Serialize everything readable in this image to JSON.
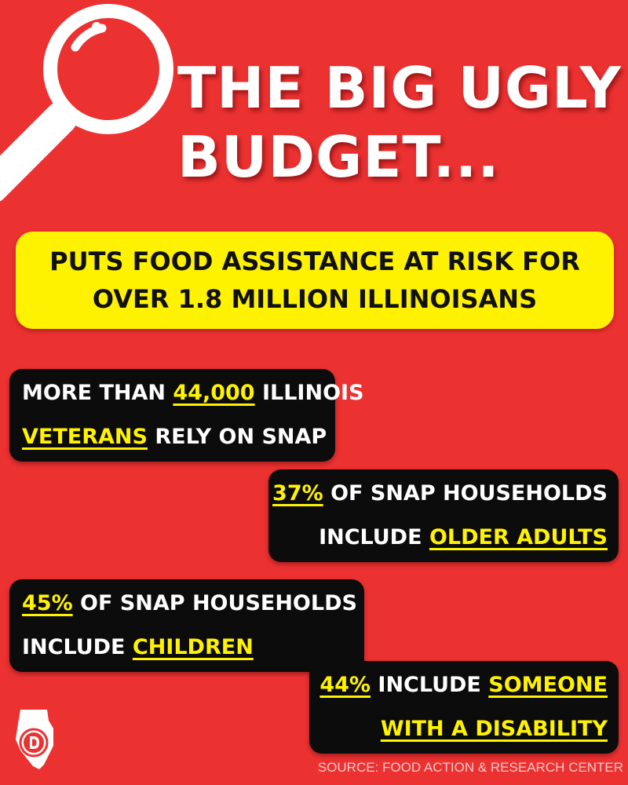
{
  "colors": {
    "background": "#ec3131",
    "accent_yellow": "#fff200",
    "card_black": "#0c0c0c",
    "text_white": "#ffffff"
  },
  "header": {
    "title_line1": "THE BIG UGLY",
    "title_line2": "BUDGET..."
  },
  "subhead": {
    "line1": "PUTS FOOD ASSISTANCE AT RISK FOR",
    "line2": "OVER 1.8 MILLION ILLINOISANS"
  },
  "stats": {
    "veterans": {
      "line1_pre": "MORE THAN ",
      "line1_hl": "44,000",
      "line1_post": " ILLINOIS",
      "line2_hl": "VETERANS",
      "line2_post": " RELY ON SNAP"
    },
    "older": {
      "line1_hl": "37%",
      "line1_post": " OF SNAP HOUSEHOLDS",
      "line2_pre": "INCLUDE ",
      "line2_hl": "OLDER ADULTS"
    },
    "children": {
      "line1_hl": "45%",
      "line1_post": " OF SNAP HOUSEHOLDS",
      "line2_pre": "INCLUDE ",
      "line2_hl": "CHILDREN"
    },
    "disability": {
      "line1_hl": "44%",
      "line1_mid": " INCLUDE ",
      "line1_hl2": "SOMEONE",
      "line2_hl": "WITH A DISABILITY"
    }
  },
  "icons": {
    "magnifier": "magnifying-glass-icon",
    "logo": "illinois-state-logo-icon"
  },
  "footer": {
    "source": "SOURCE: FOOD ACTION & RESEARCH CENTER"
  }
}
